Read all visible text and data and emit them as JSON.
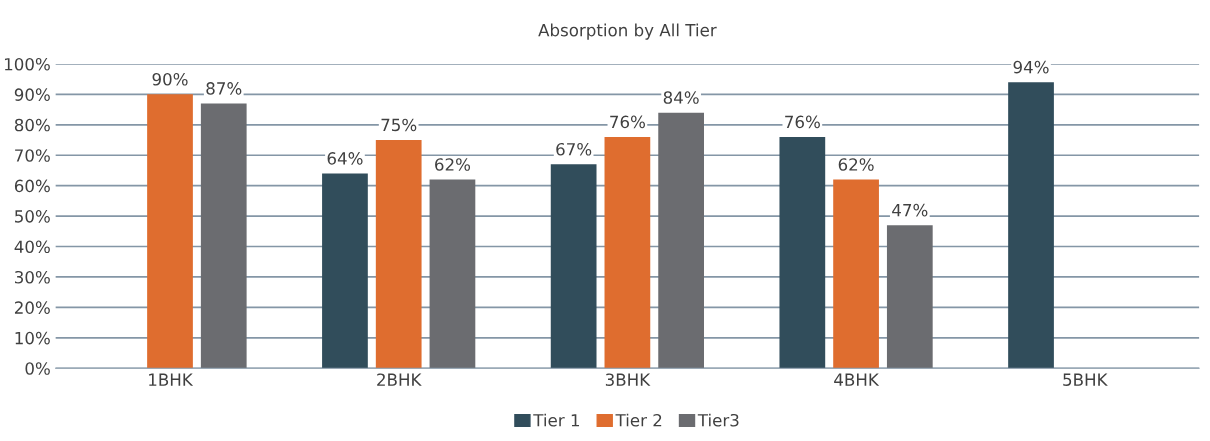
{
  "chart_data": {
    "type": "bar",
    "title": "Absorption by All Tier",
    "categories": [
      "1BHK",
      "2BHK",
      "3BHK",
      "4BHK",
      "5BHK"
    ],
    "series": [
      {
        "name": "Tier 1",
        "color": "#314d5b",
        "values": [
          null,
          64,
          67,
          76,
          94
        ],
        "value_labels": [
          null,
          "64%",
          "67%",
          "76%",
          "94%"
        ]
      },
      {
        "name": "Tier 2",
        "color": "#df6d2f",
        "values": [
          90,
          75,
          76,
          62,
          null
        ],
        "value_labels": [
          "90%",
          "75%",
          "76%",
          "62%",
          null
        ]
      },
      {
        "name": "Tier3",
        "color": "#6b6c70",
        "values": [
          87,
          62,
          84,
          47,
          null
        ],
        "value_labels": [
          "87%",
          "62%",
          "84%",
          "47%",
          null
        ]
      }
    ],
    "ylim": [
      0,
      100
    ],
    "yticks": [
      {
        "value": 0,
        "label": "0%"
      },
      {
        "value": 10,
        "label": "10%"
      },
      {
        "value": 20,
        "label": "20%"
      },
      {
        "value": 30,
        "label": "30%"
      },
      {
        "value": 40,
        "label": "40%"
      },
      {
        "value": 50,
        "label": "50%"
      },
      {
        "value": 60,
        "label": "60%"
      },
      {
        "value": 70,
        "label": "70%"
      },
      {
        "value": 80,
        "label": "80%"
      },
      {
        "value": 90,
        "label": "90%"
      },
      {
        "value": 100,
        "label": "100%"
      }
    ],
    "grid": "y",
    "legend": "bottom"
  }
}
